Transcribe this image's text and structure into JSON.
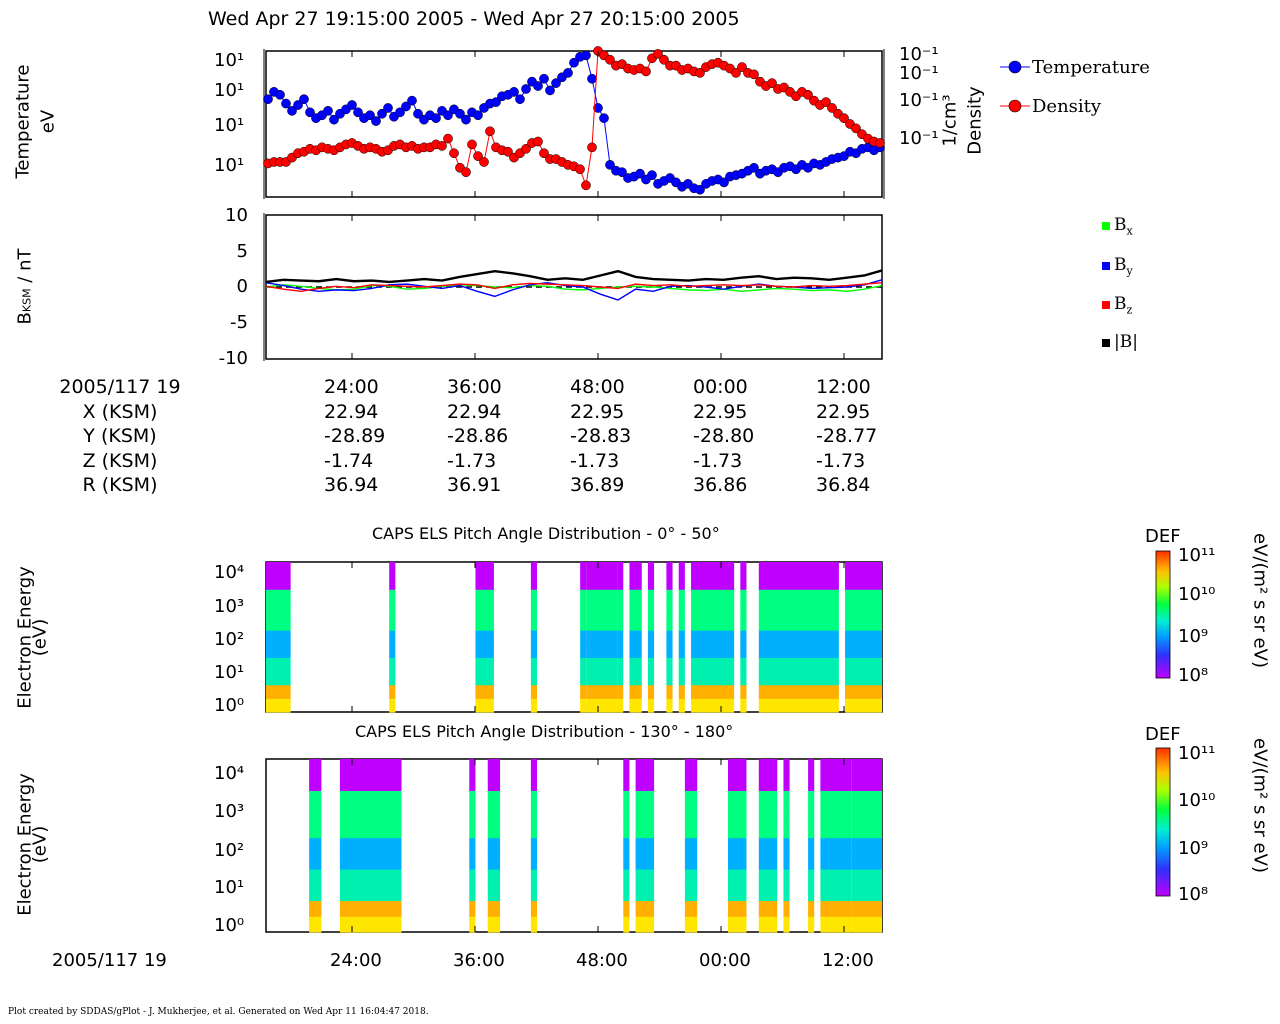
{
  "header": {
    "title": "Wed Apr 27 19:15:00 2005 - Wed Apr 27 20:15:00 2005"
  },
  "colors": {
    "temperature": "#0000ff",
    "density": "#ff0000",
    "bx": "#00ff00",
    "by": "#0000ff",
    "bz": "#ff0000",
    "bmag": "#000000"
  },
  "panel1": {
    "ylabel_left_1": "Temperature",
    "ylabel_left_2": "eV",
    "ylabel_right_1": "Density",
    "ylabel_right_2": "1/cm³",
    "left_ticks": [
      "10¹",
      "10¹",
      "10¹",
      "10¹"
    ],
    "right_ticks": [
      "10⁻¹",
      "10⁻¹",
      "10⁻¹",
      "10⁻¹"
    ],
    "legend": [
      {
        "label": "Temperature",
        "color": "#0000ff"
      },
      {
        "label": "Density",
        "color": "#ff0000"
      }
    ]
  },
  "panel2": {
    "ylabel": "B_KSM / nT",
    "ylabel_main": "B",
    "ylabel_sub": "KSM",
    "ylabel_rest": " / nT",
    "yticks": [
      "10",
      "5",
      "0",
      "-5",
      "-10"
    ],
    "legend": [
      {
        "label": "B",
        "sub": "x",
        "color": "#00ff00"
      },
      {
        "label": "B",
        "sub": "y",
        "color": "#0000ff"
      },
      {
        "label": "B",
        "sub": "z",
        "color": "#ff0000"
      },
      {
        "label": "|B|",
        "sub": "",
        "color": "#000000"
      }
    ]
  },
  "ephemeris": {
    "row_labels": [
      "2005/117 19",
      "X (KSM)",
      "Y (KSM)",
      "Z (KSM)",
      "R (KSM)"
    ],
    "columns": [
      {
        "time": "24:00",
        "x": "22.94",
        "y": "-28.89",
        "z": "-1.74",
        "r": "36.94"
      },
      {
        "time": "36:00",
        "x": "22.94",
        "y": "-28.86",
        "z": "-1.73",
        "r": "36.91"
      },
      {
        "time": "48:00",
        "x": "22.95",
        "y": "-28.83",
        "z": "-1.73",
        "r": "36.89"
      },
      {
        "time": "00:00",
        "x": "22.95",
        "y": "-28.80",
        "z": "-1.73",
        "r": "36.86"
      },
      {
        "time": "12:00",
        "x": "22.95",
        "y": "-28.77",
        "z": "-1.73",
        "r": "36.84"
      }
    ]
  },
  "spectro1": {
    "title": "CAPS ELS Pitch Angle Distribution - 0° - 50°",
    "ylabel_1": "Electron Energy",
    "ylabel_2": "(eV)",
    "yticks": [
      "10⁴",
      "10³",
      "10²",
      "10¹",
      "10⁰"
    ],
    "cbar_title": "DEF",
    "cbar_unit": "eV/(m² s sr eV)",
    "cbar_ticks": [
      "10¹¹",
      "10¹⁰",
      "10⁹",
      "10⁸"
    ]
  },
  "spectro2": {
    "title": "CAPS ELS Pitch Angle Distribution - 130° - 180°",
    "ylabel_1": "Electron Energy",
    "ylabel_2": "(eV)",
    "yticks": [
      "10⁴",
      "10³",
      "10²",
      "10¹",
      "10⁰"
    ],
    "cbar_title": "DEF",
    "cbar_unit": "eV/(m² s sr eV)",
    "cbar_ticks": [
      "10¹¹",
      "10¹⁰",
      "10⁹",
      "10⁸"
    ],
    "xlabel_left": "2005/117 19",
    "xticks": [
      "24:00",
      "36:00",
      "48:00",
      "00:00",
      "12:00"
    ]
  },
  "footer": {
    "text": "Plot created by SDDAS/gPlot - J. Mukherjee, et al.  Generated on Wed Apr 11 16:04:47 2018."
  },
  "chart_data": [
    {
      "type": "scatter",
      "title": "Wed Apr 27 19:15:00 2005 - Wed Apr 27 20:15:00 2005",
      "xlabel": "",
      "ylabel": "Temperature eV",
      "y2label": "Density 1/cm³",
      "x_ticks": [
        "24:00",
        "36:00",
        "48:00",
        "00:00",
        "12:00"
      ],
      "series": [
        {
          "name": "Temperature",
          "y": [
            0.33,
            0.28,
            0.3,
            0.36,
            0.41,
            0.37,
            0.33,
            0.42,
            0.46,
            0.44,
            0.41,
            0.47,
            0.43,
            0.4,
            0.37,
            0.42,
            0.46,
            0.44,
            0.48,
            0.43,
            0.39,
            0.45,
            0.42,
            0.38,
            0.34,
            0.43,
            0.47,
            0.44,
            0.46,
            0.41,
            0.44,
            0.4,
            0.43,
            0.47,
            0.42,
            0.44,
            0.39,
            0.36,
            0.35,
            0.31,
            0.3,
            0.28,
            0.33,
            0.26,
            0.21,
            0.24,
            0.19,
            0.27,
            0.22,
            0.18,
            0.15,
            0.08,
            0.04,
            0.03,
            0.19,
            0.39,
            0.46,
            0.78,
            0.82,
            0.83,
            0.87,
            0.86,
            0.84,
            0.88,
            0.85,
            0.91,
            0.89,
            0.87,
            0.9,
            0.93,
            0.91,
            0.94,
            0.95,
            0.91,
            0.89,
            0.88,
            0.9,
            0.86,
            0.85,
            0.84,
            0.82,
            0.8,
            0.84,
            0.82,
            0.81,
            0.83,
            0.8,
            0.79,
            0.81,
            0.78,
            0.8,
            0.77,
            0.78,
            0.76,
            0.74,
            0.73,
            0.72,
            0.69,
            0.7,
            0.67,
            0.66,
            0.68,
            0.66
          ]
        },
        {
          "name": "Density",
          "y": [
            0.77,
            0.76,
            0.76,
            0.76,
            0.73,
            0.7,
            0.69,
            0.67,
            0.68,
            0.66,
            0.67,
            0.68,
            0.66,
            0.64,
            0.63,
            0.65,
            0.67,
            0.66,
            0.67,
            0.69,
            0.68,
            0.65,
            0.64,
            0.66,
            0.65,
            0.67,
            0.66,
            0.66,
            0.64,
            0.65,
            0.6,
            0.7,
            0.8,
            0.83,
            0.64,
            0.72,
            0.76,
            0.55,
            0.66,
            0.68,
            0.69,
            0.73,
            0.7,
            0.67,
            0.63,
            0.62,
            0.7,
            0.74,
            0.74,
            0.76,
            0.78,
            0.79,
            0.81,
            0.92,
            0.66,
            -0.05,
            0.03,
            0.06,
            0.1,
            0.09,
            0.12,
            0.13,
            0.12,
            0.14,
            0.05,
            0.02,
            0.06,
            0.1,
            0.1,
            0.13,
            0.12,
            0.14,
            0.15,
            0.11,
            0.09,
            0.08,
            0.1,
            0.12,
            0.15,
            0.11,
            0.15,
            0.16,
            0.21,
            0.24,
            0.22,
            0.26,
            0.25,
            0.28,
            0.31,
            0.28,
            0.3,
            0.34,
            0.37,
            0.35,
            0.39,
            0.43,
            0.46,
            0.5,
            0.53,
            0.57,
            0.6,
            0.62,
            0.63
          ]
        }
      ],
      "grid": false,
      "legend": "right"
    },
    {
      "type": "line",
      "title": "",
      "ylabel": "B_KSM / nT",
      "ylim": [
        -10,
        10
      ],
      "x_ticks": [
        "24:00",
        "36:00",
        "48:00",
        "00:00",
        "12:00"
      ],
      "series": [
        {
          "name": "Bx",
          "values": [
            0.0,
            0.3,
            0.1,
            -0.2,
            -0.4,
            -0.3,
            0.2,
            0.1,
            -0.3,
            -0.2,
            0.1,
            0.3,
            0.2,
            0.0,
            -0.1,
            0.2,
            0.1,
            -0.3,
            -0.4,
            -0.2,
            0.0,
            0.1,
            0.0,
            -0.2,
            -0.4,
            -0.5,
            -0.3,
            -0.6,
            -0.4,
            -0.2,
            -0.3,
            -0.5,
            -0.4,
            -0.6,
            -0.3,
            0.2
          ]
        },
        {
          "name": "By",
          "values": [
            0.6,
            0.2,
            -0.3,
            -0.6,
            -0.4,
            -0.5,
            -0.2,
            0.3,
            0.4,
            0.1,
            -0.2,
            0.2,
            -0.6,
            -1.3,
            -0.4,
            0.3,
            0.6,
            0.2,
            0.0,
            -1.0,
            -1.8,
            -0.3,
            -0.6,
            0.1,
            0.2,
            0.0,
            -0.3,
            0.1,
            0.4,
            0.1,
            0.0,
            -0.2,
            -0.1,
            0.0,
            0.3,
            1.0
          ]
        },
        {
          "name": "Bz",
          "values": [
            0.1,
            -0.3,
            -0.6,
            -0.2,
            0.1,
            -0.1,
            0.3,
            0.2,
            0.1,
            0.0,
            0.2,
            0.4,
            0.3,
            -0.2,
            0.3,
            0.5,
            0.4,
            0.3,
            0.2,
            0.0,
            -0.2,
            0.4,
            0.2,
            0.3,
            0.1,
            0.2,
            0.3,
            0.2,
            0.3,
            0.1,
            0.0,
            0.2,
            0.1,
            0.2,
            0.4,
            0.6
          ]
        },
        {
          "name": "|B|",
          "values": [
            0.7,
            1.0,
            0.9,
            0.8,
            1.1,
            0.8,
            0.9,
            0.7,
            0.9,
            1.1,
            0.9,
            1.4,
            1.8,
            2.2,
            1.9,
            1.5,
            1.0,
            1.2,
            1.0,
            1.6,
            2.2,
            1.4,
            1.1,
            1.0,
            0.9,
            1.1,
            1.0,
            1.3,
            1.5,
            1.1,
            1.3,
            1.2,
            1.0,
            1.3,
            1.6,
            2.3
          ]
        }
      ],
      "grid": false,
      "legend": "right"
    },
    {
      "type": "heatmap",
      "title": "CAPS ELS Pitch Angle Distribution - 0° - 50°",
      "ylabel": "Electron Energy (eV)",
      "colorbar": {
        "label": "DEF eV/(m² s sr eV)",
        "range_log10": [
          8,
          11
        ]
      },
      "data_present_spans_fraction": [
        [
          0.0,
          0.04
        ],
        [
          0.2,
          0.21
        ],
        [
          0.34,
          0.37
        ],
        [
          0.43,
          0.44
        ],
        [
          0.51,
          0.52
        ],
        [
          0.52,
          0.57
        ],
        [
          0.57,
          0.58
        ],
        [
          0.59,
          0.61
        ],
        [
          0.62,
          0.63
        ],
        [
          0.65,
          0.66
        ],
        [
          0.67,
          0.68
        ],
        [
          0.69,
          0.76
        ],
        [
          0.77,
          0.78
        ],
        [
          0.8,
          0.93
        ],
        [
          0.94,
          1.0
        ]
      ]
    },
    {
      "type": "heatmap",
      "title": "CAPS ELS Pitch Angle Distribution - 130° - 180°",
      "ylabel": "Electron Energy (eV)",
      "colorbar": {
        "label": "DEF eV/(m² s sr eV)",
        "range_log10": [
          8,
          11
        ]
      },
      "data_present_spans_fraction": [
        [
          0.07,
          0.09
        ],
        [
          0.12,
          0.22
        ],
        [
          0.33,
          0.34
        ],
        [
          0.36,
          0.38
        ],
        [
          0.43,
          0.44
        ],
        [
          0.58,
          0.59
        ],
        [
          0.6,
          0.63
        ],
        [
          0.68,
          0.7
        ],
        [
          0.75,
          0.78
        ],
        [
          0.8,
          0.83
        ],
        [
          0.84,
          0.85
        ],
        [
          0.88,
          0.89
        ],
        [
          0.9,
          0.95
        ],
        [
          0.95,
          1.0
        ]
      ]
    }
  ]
}
